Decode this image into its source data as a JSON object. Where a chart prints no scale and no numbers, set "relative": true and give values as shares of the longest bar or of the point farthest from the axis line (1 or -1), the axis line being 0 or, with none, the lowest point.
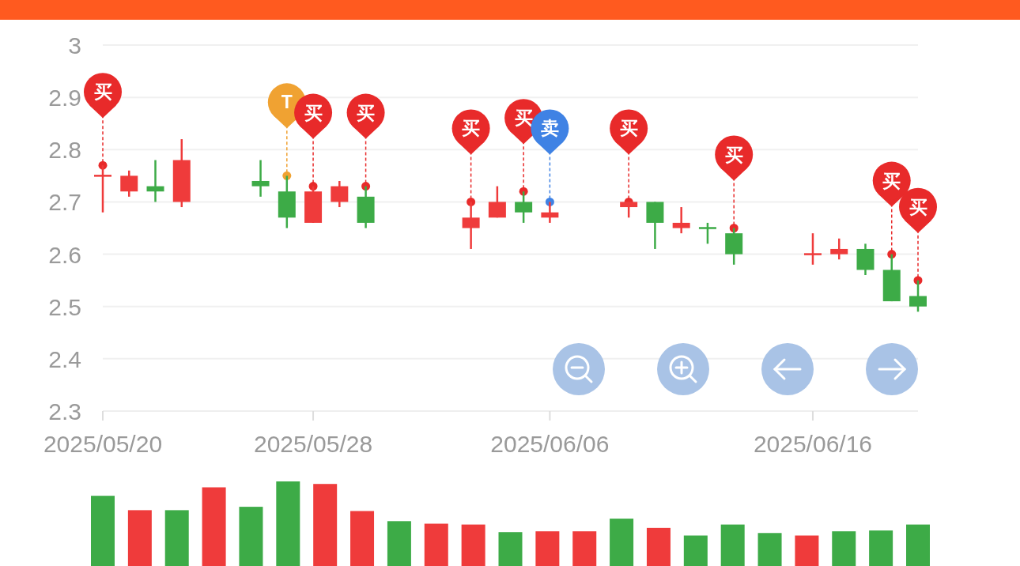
{
  "chart_data": [
    {
      "type": "candlestick",
      "x": [
        "2025-05-20",
        "2025-05-21",
        "2025-05-22",
        "2025-05-23",
        "2025-05-26",
        "2025-05-27",
        "2025-05-28",
        "2025-05-29",
        "2025-05-30",
        "2025-06-03",
        "2025-06-04",
        "2025-06-05",
        "2025-06-06",
        "2025-06-09",
        "2025-06-10",
        "2025-06-11",
        "2025-06-12",
        "2025-06-13",
        "2025-06-16",
        "2025-06-17",
        "2025-06-18",
        "2025-06-19",
        "2025-06-20"
      ],
      "ohlc": [
        [
          2.75,
          2.77,
          2.68,
          2.75
        ],
        [
          2.72,
          2.76,
          2.71,
          2.75
        ],
        [
          2.73,
          2.78,
          2.7,
          2.72
        ],
        [
          2.7,
          2.82,
          2.69,
          2.78
        ],
        [
          2.74,
          2.78,
          2.71,
          2.73
        ],
        [
          2.72,
          2.75,
          2.65,
          2.67
        ],
        [
          2.66,
          2.73,
          2.66,
          2.72
        ],
        [
          2.7,
          2.74,
          2.69,
          2.73
        ],
        [
          2.71,
          2.73,
          2.65,
          2.66
        ],
        [
          2.65,
          2.7,
          2.61,
          2.67
        ],
        [
          2.67,
          2.73,
          2.67,
          2.7
        ],
        [
          2.7,
          2.72,
          2.66,
          2.68
        ],
        [
          2.67,
          2.7,
          2.66,
          2.68
        ],
        [
          2.69,
          2.7,
          2.67,
          2.7
        ],
        [
          2.7,
          2.7,
          2.61,
          2.66
        ],
        [
          2.65,
          2.69,
          2.64,
          2.66
        ],
        [
          2.65,
          2.66,
          2.62,
          2.65
        ],
        [
          2.64,
          2.65,
          2.58,
          2.6
        ],
        [
          2.6,
          2.64,
          2.58,
          2.6
        ],
        [
          2.6,
          2.63,
          2.59,
          2.61
        ],
        [
          2.61,
          2.62,
          2.56,
          2.57
        ],
        [
          2.57,
          2.6,
          2.51,
          2.51
        ],
        [
          2.52,
          2.55,
          2.49,
          2.5
        ]
      ],
      "colors": [
        "#ef3b3b",
        "#ef3b3b",
        "#3dab47",
        "#ef3b3b",
        "#3dab47",
        "#3dab47",
        "#ef3b3b",
        "#ef3b3b",
        "#3dab47",
        "#ef3b3b",
        "#ef3b3b",
        "#3dab47",
        "#ef3b3b",
        "#ef3b3b",
        "#3dab47",
        "#ef3b3b",
        "#3dab47",
        "#3dab47",
        "#ef3b3b",
        "#ef3b3b",
        "#3dab47",
        "#3dab47",
        "#3dab47"
      ],
      "xlim": [
        "2025-05-20",
        "2025-06-20"
      ],
      "ylim": [
        2.3,
        3
      ],
      "yticks": [
        2.3,
        2.4,
        2.5,
        2.6,
        2.7,
        2.8,
        2.9,
        3
      ],
      "xticks": [
        {
          "value": "2025-05-20",
          "label": "2025/05/20"
        },
        {
          "value": "2025-05-28",
          "label": "2025/05/28"
        },
        {
          "value": "2025-06-06",
          "label": "2025/06/06"
        },
        {
          "value": "2025-06-16",
          "label": "2025/06/16"
        }
      ],
      "grid": "y",
      "series": [
        {
          "type": "scatter",
          "color": "#e82a2a",
          "x": [
            "2025-05-20",
            "2025-05-28",
            "2025-05-30",
            "2025-06-03",
            "2025-06-05",
            "2025-06-09",
            "2025-06-13",
            "2025-06-19",
            "2025-06-20"
          ],
          "values": [
            2.77,
            2.73,
            2.73,
            2.7,
            2.72,
            2.7,
            2.65,
            2.6,
            2.55
          ]
        },
        {
          "type": "scatter",
          "color": "#f0a232",
          "x": [
            "2025-05-27"
          ],
          "values": [
            2.75
          ]
        },
        {
          "type": "scatter",
          "color": "#3f82e4",
          "x": [
            "2025-06-06"
          ],
          "values": [
            2.7
          ]
        }
      ],
      "annotations": [
        {
          "text": "买",
          "x": "2025-05-20",
          "y": 2.77
        },
        {
          "text": "T",
          "x": "2025-05-27",
          "y": 2.75
        },
        {
          "text": "买",
          "x": "2025-05-28",
          "y": 2.73
        },
        {
          "text": "买",
          "x": "2025-05-30",
          "y": 2.73
        },
        {
          "text": "买",
          "x": "2025-06-03",
          "y": 2.7
        },
        {
          "text": "买",
          "x": "2025-06-05",
          "y": 2.72
        },
        {
          "text": "卖",
          "x": "2025-06-06",
          "y": 2.7
        },
        {
          "text": "买",
          "x": "2025-06-09",
          "y": 2.7
        },
        {
          "text": "买",
          "x": "2025-06-13",
          "y": 2.65
        },
        {
          "text": "买",
          "x": "2025-06-19",
          "y": 2.6
        },
        {
          "text": "买",
          "x": "2025-06-20",
          "y": 2.55
        }
      ]
    },
    {
      "type": "bar",
      "categories": [
        null,
        null,
        null,
        null,
        null,
        null,
        null,
        null,
        null,
        null,
        null,
        null,
        null,
        null,
        null,
        null,
        null,
        null,
        null,
        null,
        null,
        null,
        null
      ],
      "values": [
        0.83,
        0.66,
        0.66,
        0.93,
        0.7,
        1,
        0.97,
        0.65,
        0.53,
        0.5,
        0.49,
        0.4,
        0.41,
        0.41,
        0.56,
        0.45,
        0.36,
        0.49,
        0.39,
        0.36,
        0.41,
        0.42,
        0.49
      ],
      "colors": [
        "#3dab47",
        "#ef3b3b",
        "#3dab47",
        "#ef3b3b",
        "#3dab47",
        "#3dab47",
        "#ef3b3b",
        "#ef3b3b",
        "#3dab47",
        "#ef3b3b",
        "#ef3b3b",
        "#3dab47",
        "#ef3b3b",
        "#ef3b3b",
        "#3dab47",
        "#ef3b3b",
        "#3dab47",
        "#3dab47",
        "#3dab47",
        "#ef3b3b",
        "#3dab47",
        "#3dab47",
        "#3dab47"
      ],
      "relative": true
    }
  ]
}
